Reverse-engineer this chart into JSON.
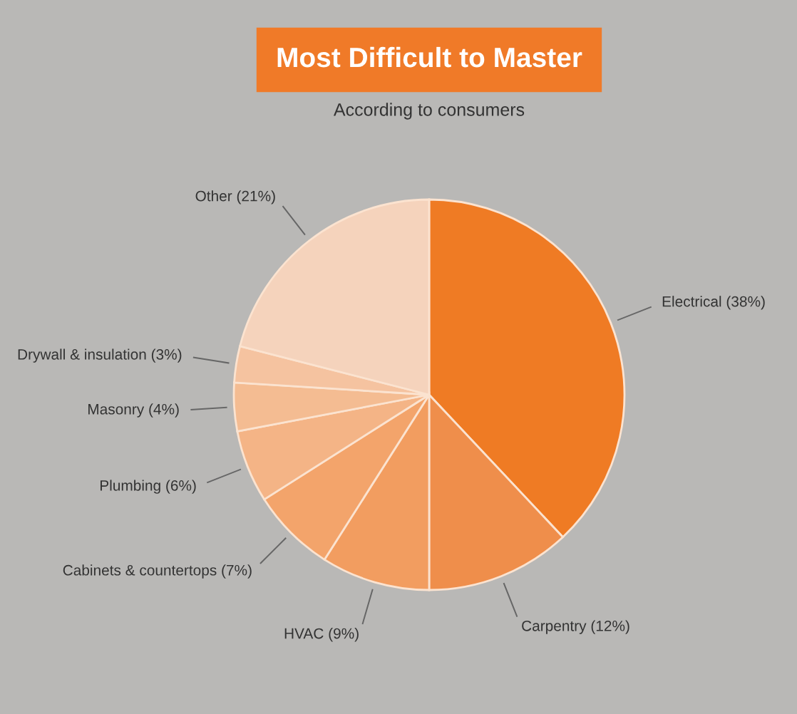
{
  "chart_data": {
    "type": "pie",
    "title": "Most Difficult to Master",
    "subtitle": "According to consumers",
    "categories": [
      "Electrical (38%)",
      "Carpentry (12%)",
      "HVAC (9%)",
      "Cabinets & countertops (7%)",
      "Plumbing (6%)",
      "Masonry (4%)",
      "Drywall & insulation (3%)",
      "Other (21%)"
    ],
    "values": [
      38,
      12,
      9,
      7,
      6,
      4,
      3,
      21
    ],
    "colors": [
      "#ef7b24",
      "#ef8e4b",
      "#f29d60",
      "#f3a46b",
      "#f4b486",
      "#f4bc92",
      "#f5c3a0",
      "#f5d3bc"
    ],
    "legend": false
  }
}
